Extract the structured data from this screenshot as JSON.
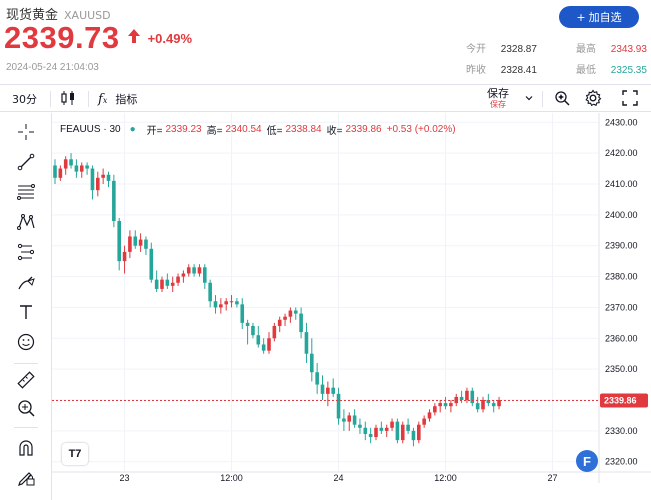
{
  "header": {
    "title": "现货黄金",
    "symbol": "XAUUSD",
    "add_button": "加自选",
    "price": "2339.73",
    "change": "+0.49%",
    "timestamp": "2024-05-24 21:04:03",
    "stats": [
      {
        "label": "今开",
        "value": "2328.87",
        "tone": "neutral"
      },
      {
        "label": "最高",
        "value": "2343.93",
        "tone": "red"
      },
      {
        "label": "昨收",
        "value": "2328.41",
        "tone": "neutral"
      },
      {
        "label": "最低",
        "value": "2325.35",
        "tone": "green"
      }
    ]
  },
  "toolbar": {
    "interval": "30分",
    "indicators": "指标",
    "save": "保存",
    "save_sub": "保存"
  },
  "legend": {
    "symbol": "FEAUUS · 30",
    "open_label": "开=",
    "open": "2339.23",
    "high_label": "高=",
    "high": "2340.54",
    "low_label": "低=",
    "low": "2338.84",
    "close_label": "收=",
    "close": "2339.86",
    "change": "+0.53 (+0.02%)"
  },
  "current_price_label": "2339.86",
  "logos": {
    "tv": "T7",
    "f": "F"
  },
  "colors": {
    "up": "#e0393e",
    "down": "#26a69a",
    "accent": "#1e58c8"
  },
  "chart_data": {
    "type": "candlestick",
    "interval": "30m",
    "y_ticks": [
      2430,
      2420,
      2410,
      2400,
      2390,
      2380,
      2370,
      2360,
      2350,
      2340,
      2330,
      2320
    ],
    "y_tick_labels": [
      "2430.00",
      "2420.00",
      "2410.00",
      "2400.00",
      "2390.00",
      "2380.00",
      "2370.00",
      "2360.00",
      "2350.00",
      "2340.00",
      "2330.00",
      "2320.00"
    ],
    "ylim": [
      2317,
      2433
    ],
    "x_ticks": [
      {
        "label": "23",
        "index": 13
      },
      {
        "label": "12:00",
        "index": 33
      },
      {
        "label": "24",
        "index": 53
      },
      {
        "label": "12:00",
        "index": 73
      },
      {
        "label": "27",
        "index": 93
      }
    ],
    "current_price": 2339.86,
    "candles": [
      [
        2416,
        2418,
        2410,
        2412
      ],
      [
        2412,
        2416,
        2411,
        2415
      ],
      [
        2415,
        2419,
        2413,
        2418
      ],
      [
        2418,
        2420,
        2415,
        2416
      ],
      [
        2416,
        2418,
        2412,
        2414
      ],
      [
        2414,
        2417,
        2412,
        2416
      ],
      [
        2416,
        2417,
        2413,
        2415
      ],
      [
        2415,
        2416,
        2405,
        2408
      ],
      [
        2408,
        2414,
        2406,
        2412
      ],
      [
        2412,
        2415,
        2410,
        2413
      ],
      [
        2413,
        2414,
        2409,
        2411
      ],
      [
        2411,
        2413,
        2396,
        2398
      ],
      [
        2398,
        2399,
        2382,
        2385
      ],
      [
        2385,
        2390,
        2381,
        2388
      ],
      [
        2388,
        2395,
        2386,
        2393
      ],
      [
        2393,
        2395,
        2389,
        2390
      ],
      [
        2390,
        2394,
        2388,
        2392
      ],
      [
        2392,
        2393,
        2387,
        2389
      ],
      [
        2389,
        2391,
        2378,
        2379
      ],
      [
        2379,
        2382,
        2375,
        2376
      ],
      [
        2376,
        2380,
        2375,
        2379
      ],
      [
        2379,
        2381,
        2376,
        2377
      ],
      [
        2377,
        2380,
        2375,
        2378
      ],
      [
        2378,
        2381,
        2377,
        2380
      ],
      [
        2380,
        2382,
        2378,
        2381
      ],
      [
        2381,
        2384,
        2380,
        2383
      ],
      [
        2383,
        2384,
        2380,
        2381
      ],
      [
        2381,
        2384,
        2380,
        2383
      ],
      [
        2383,
        2384,
        2376,
        2378
      ],
      [
        2378,
        2379,
        2370,
        2372
      ],
      [
        2372,
        2374,
        2368,
        2370
      ],
      [
        2370,
        2373,
        2368,
        2371
      ],
      [
        2371,
        2373,
        2369,
        2372
      ],
      [
        2372,
        2374,
        2370,
        2372
      ],
      [
        2372,
        2373,
        2370,
        2371
      ],
      [
        2371,
        2373,
        2363,
        2365
      ],
      [
        2365,
        2366,
        2358,
        2364
      ],
      [
        2364,
        2365,
        2360,
        2361
      ],
      [
        2361,
        2364,
        2357,
        2358
      ],
      [
        2358,
        2360,
        2355,
        2356
      ],
      [
        2356,
        2362,
        2355,
        2360
      ],
      [
        2360,
        2365,
        2359,
        2364
      ],
      [
        2364,
        2367,
        2362,
        2366
      ],
      [
        2366,
        2368,
        2364,
        2367
      ],
      [
        2367,
        2370,
        2365,
        2369
      ],
      [
        2369,
        2370,
        2366,
        2368
      ],
      [
        2368,
        2370,
        2360,
        2362
      ],
      [
        2362,
        2365,
        2352,
        2355
      ],
      [
        2355,
        2360,
        2346,
        2349
      ],
      [
        2349,
        2352,
        2342,
        2345
      ],
      [
        2345,
        2348,
        2340,
        2342
      ],
      [
        2342,
        2346,
        2338,
        2344
      ],
      [
        2344,
        2347,
        2341,
        2342
      ],
      [
        2342,
        2344,
        2332,
        2334
      ],
      [
        2334,
        2337,
        2330,
        2333
      ],
      [
        2333,
        2336,
        2330,
        2335
      ],
      [
        2335,
        2337,
        2331,
        2332
      ],
      [
        2332,
        2334,
        2329,
        2331
      ],
      [
        2331,
        2333,
        2327,
        2329
      ],
      [
        2329,
        2331,
        2326,
        2328
      ],
      [
        2328,
        2332,
        2327,
        2331
      ],
      [
        2331,
        2333,
        2329,
        2330
      ],
      [
        2330,
        2332,
        2328,
        2331
      ],
      [
        2331,
        2334,
        2330,
        2333
      ],
      [
        2333,
        2334,
        2326,
        2327
      ],
      [
        2327,
        2333,
        2326,
        2332
      ],
      [
        2332,
        2334,
        2329,
        2330
      ],
      [
        2330,
        2331,
        2325,
        2327
      ],
      [
        2327,
        2333,
        2326,
        2332
      ],
      [
        2332,
        2335,
        2331,
        2334
      ],
      [
        2334,
        2337,
        2333,
        2336
      ],
      [
        2336,
        2339,
        2335,
        2338
      ],
      [
        2338,
        2340,
        2336,
        2339
      ],
      [
        2339,
        2341,
        2337,
        2338
      ],
      [
        2338,
        2340,
        2336,
        2339
      ],
      [
        2339,
        2342,
        2338,
        2341
      ],
      [
        2341,
        2343,
        2339,
        2340
      ],
      [
        2340,
        2344,
        2339,
        2343
      ],
      [
        2343,
        2344,
        2338,
        2339
      ],
      [
        2339,
        2341,
        2336,
        2337
      ],
      [
        2337,
        2341,
        2336,
        2340
      ],
      [
        2340,
        2342,
        2338,
        2339
      ],
      [
        2339,
        2340,
        2336,
        2338
      ],
      [
        2338,
        2341,
        2337,
        2340
      ]
    ]
  }
}
